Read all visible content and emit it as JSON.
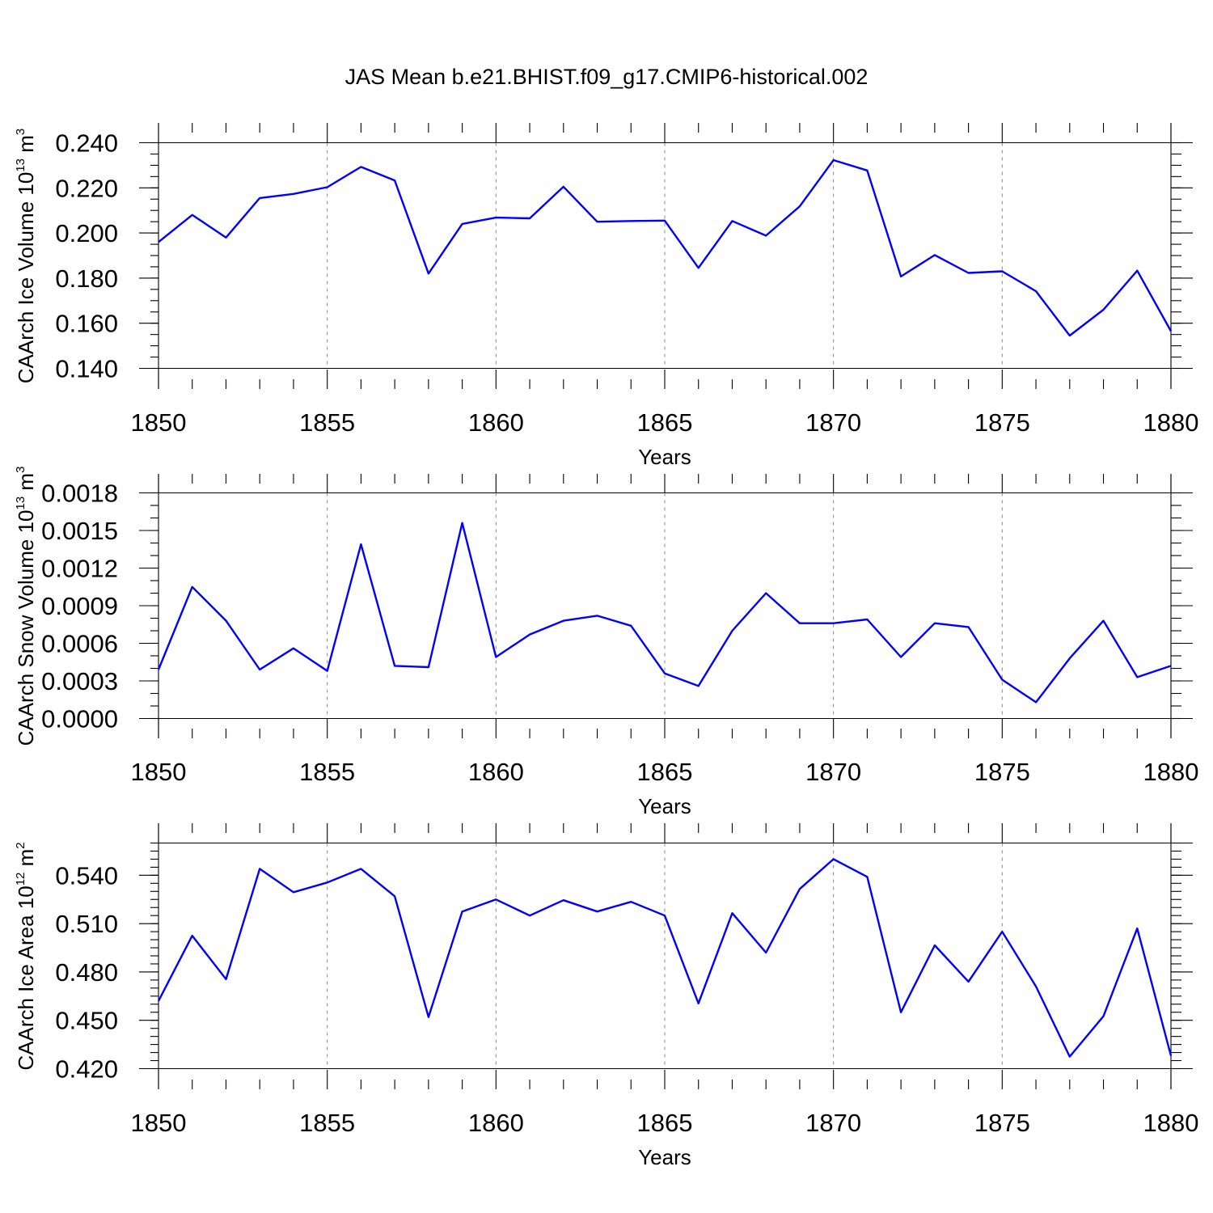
{
  "title": "JAS Mean b.e21.BHIST.f09_g17.CMIP6-historical.002",
  "colors": {
    "series": "#0000ff",
    "grid": "#888888",
    "axis": "#000000"
  },
  "chart_data": [
    {
      "type": "line",
      "xlabel": "Years",
      "ylabel": {
        "text": "CAArch Ice Volume 10",
        "exponent": "13",
        "unit": " m",
        "unit_exponent": "3"
      },
      "xlim": [
        1850,
        1880
      ],
      "ylim": [
        0.14,
        0.24
      ],
      "y_ticks": [
        0.14,
        0.16,
        0.18,
        0.2,
        0.22,
        0.24
      ],
      "y_tick_labels": [
        "0.140",
        "0.160",
        "0.180",
        "0.200",
        "0.220",
        "0.240"
      ],
      "y_minor_step": 0.005,
      "x_ticks": [
        1850,
        1855,
        1860,
        1865,
        1870,
        1875,
        1880
      ],
      "x_tick_labels": [
        "1850",
        "1855",
        "1860",
        "1865",
        "1870",
        "1875",
        "1880"
      ],
      "grid": "vertical dashed at labeled years",
      "x": [
        1850,
        1851,
        1852,
        1853,
        1854,
        1855,
        1856,
        1857,
        1858,
        1859,
        1860,
        1861,
        1862,
        1863,
        1864,
        1865,
        1866,
        1867,
        1868,
        1869,
        1870,
        1871,
        1872,
        1873,
        1874,
        1875,
        1876,
        1877,
        1878,
        1879,
        1880
      ],
      "values": [
        0.196,
        0.208,
        0.198,
        0.2155,
        0.2173,
        0.2203,
        0.2293,
        0.2233,
        0.182,
        0.204,
        0.2068,
        0.2065,
        0.2205,
        0.205,
        0.2053,
        0.2055,
        0.1845,
        0.2053,
        0.1988,
        0.2118,
        0.2323,
        0.2277,
        0.1807,
        0.1902,
        0.1823,
        0.183,
        0.1742,
        0.1545,
        0.166,
        0.1833,
        0.1565
      ]
    },
    {
      "type": "line",
      "xlabel": "Years",
      "ylabel": {
        "text": "CAArch Snow Volume 10",
        "exponent": "13",
        "unit": " m",
        "unit_exponent": "3"
      },
      "xlim": [
        1850,
        1880
      ],
      "ylim": [
        0.0,
        0.0018
      ],
      "y_ticks": [
        0.0,
        0.0003,
        0.0006,
        0.0009,
        0.0012,
        0.0015,
        0.0018
      ],
      "y_tick_labels": [
        "0.0000",
        "0.0003",
        "0.0006",
        "0.0009",
        "0.0012",
        "0.0015",
        "0.0018"
      ],
      "y_minor_step": 0.0001,
      "x_ticks": [
        1850,
        1855,
        1860,
        1865,
        1870,
        1875,
        1880
      ],
      "x_tick_labels": [
        "1850",
        "1855",
        "1860",
        "1865",
        "1870",
        "1875",
        "1880"
      ],
      "grid": "vertical dashed at labeled years",
      "x": [
        1850,
        1851,
        1852,
        1853,
        1854,
        1855,
        1856,
        1857,
        1858,
        1859,
        1860,
        1861,
        1862,
        1863,
        1864,
        1865,
        1866,
        1867,
        1868,
        1869,
        1870,
        1871,
        1872,
        1873,
        1874,
        1875,
        1876,
        1877,
        1878,
        1879,
        1880
      ],
      "values": [
        0.00039,
        0.00105,
        0.00078,
        0.00039,
        0.00056,
        0.00038,
        0.00139,
        0.00042,
        0.00041,
        0.00156,
        0.00049,
        0.00067,
        0.00078,
        0.00082,
        0.00074,
        0.00036,
        0.00026,
        0.0007,
        0.001,
        0.00076,
        0.00076,
        0.00079,
        0.00049,
        0.00076,
        0.00073,
        0.00031,
        0.00013,
        0.00048,
        0.00078,
        0.00033,
        0.00042
      ]
    },
    {
      "type": "line",
      "xlabel": "Years",
      "ylabel": {
        "text": "CAArch Ice Area 10",
        "exponent": "12",
        "unit": " m",
        "unit_exponent": "2"
      },
      "xlim": [
        1850,
        1880
      ],
      "ylim": [
        0.42,
        0.56
      ],
      "y_ticks": [
        0.42,
        0.45,
        0.48,
        0.51,
        0.54
      ],
      "y_tick_labels": [
        "0.420",
        "0.450",
        "0.480",
        "0.510",
        "0.540"
      ],
      "y_minor_step": 0.005,
      "x_ticks": [
        1850,
        1855,
        1860,
        1865,
        1870,
        1875,
        1880
      ],
      "x_tick_labels": [
        "1850",
        "1855",
        "1860",
        "1865",
        "1870",
        "1875",
        "1880"
      ],
      "grid": "vertical dashed at labeled years",
      "x": [
        1850,
        1851,
        1852,
        1853,
        1854,
        1855,
        1856,
        1857,
        1858,
        1859,
        1860,
        1861,
        1862,
        1863,
        1864,
        1865,
        1866,
        1867,
        1868,
        1869,
        1870,
        1871,
        1872,
        1873,
        1874,
        1875,
        1876,
        1877,
        1878,
        1879,
        1880
      ],
      "values": [
        0.462,
        0.5025,
        0.4755,
        0.544,
        0.5295,
        0.5355,
        0.544,
        0.527,
        0.452,
        0.5175,
        0.525,
        0.515,
        0.5245,
        0.5175,
        0.5235,
        0.515,
        0.4605,
        0.5165,
        0.492,
        0.5315,
        0.55,
        0.539,
        0.455,
        0.4965,
        0.474,
        0.505,
        0.471,
        0.4275,
        0.4525,
        0.507,
        0.428
      ]
    }
  ]
}
